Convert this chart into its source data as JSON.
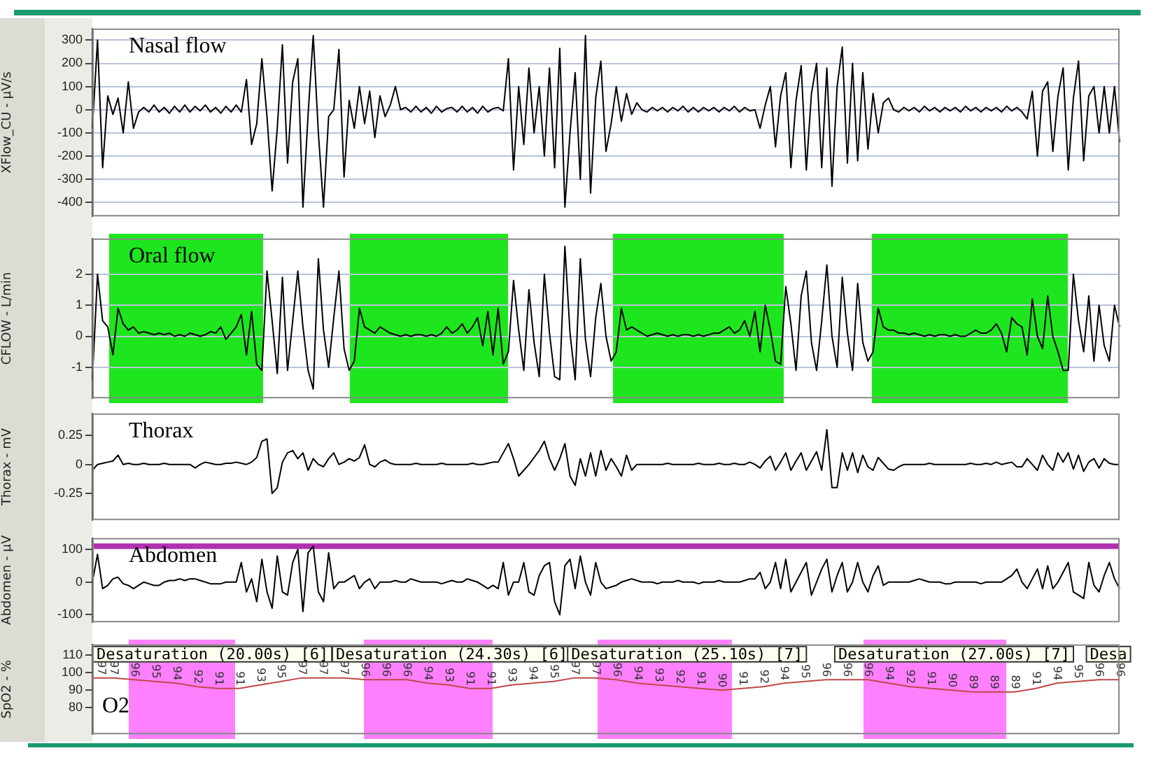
{
  "chart_data": [
    {
      "type": "line",
      "title": "Nasal flow",
      "ylabel": "XFlow_CU - µV/s",
      "ylim": [
        -460,
        350
      ],
      "yticks": [
        -400,
        -300,
        -200,
        -100,
        0,
        100,
        200,
        300
      ],
      "grid": "y",
      "tick_labels": "y",
      "categories": [
        null,
        null,
        null,
        null,
        null,
        null,
        null,
        null,
        null,
        null,
        null,
        null,
        null,
        null,
        null,
        null,
        null,
        null,
        null,
        null,
        null,
        null,
        null,
        null,
        null,
        null,
        null,
        null,
        null,
        null,
        null,
        null,
        null,
        null,
        null,
        null,
        null,
        null,
        null,
        null,
        null,
        null,
        null,
        null,
        null,
        null,
        null,
        null,
        null,
        null,
        null,
        null,
        null,
        null,
        null,
        null,
        null,
        null,
        null,
        null,
        null,
        null,
        null,
        null,
        null,
        null,
        null,
        null,
        null,
        null,
        null,
        null,
        null,
        null,
        null,
        null,
        null,
        null,
        null,
        null,
        null,
        null,
        null,
        null,
        null,
        null,
        null,
        null,
        null,
        null,
        null,
        null,
        null,
        null,
        null,
        null,
        null,
        null,
        null,
        null,
        null,
        null,
        null,
        null,
        null,
        null,
        null,
        null,
        null,
        null,
        null,
        null,
        null,
        null,
        null,
        null,
        null,
        null,
        null,
        null,
        null,
        null,
        null,
        null,
        null,
        null,
        null,
        null,
        null,
        null,
        null,
        null,
        null,
        null,
        null,
        null,
        null,
        null,
        null,
        null,
        null,
        null,
        null,
        null,
        null,
        null,
        null,
        null,
        null,
        null,
        null,
        null,
        null,
        null,
        null,
        null,
        null,
        null,
        null,
        null,
        null,
        null,
        null,
        null,
        null,
        null,
        null,
        null,
        null,
        null,
        null,
        null,
        null,
        null,
        null,
        null,
        null,
        null,
        null,
        null,
        null,
        null,
        null,
        null,
        null,
        null,
        null,
        null,
        null,
        null,
        null,
        null,
        null,
        null,
        null,
        null,
        null,
        null,
        null,
        null,
        null
      ],
      "series": [
        {
          "color": "#000000",
          "values": [
            -80,
            300,
            -250,
            60,
            -20,
            50,
            -100,
            120,
            -80,
            -10,
            10,
            -10,
            20,
            -10,
            10,
            -15,
            15,
            -10,
            20,
            -10,
            15,
            -5,
            20,
            -10,
            10,
            -15,
            15,
            -10,
            20,
            -10,
            130,
            -150,
            -60,
            220,
            -30,
            -350,
            -80,
            280,
            -230,
            120,
            220,
            -420,
            -20,
            320,
            -100,
            -420,
            -30,
            0,
            260,
            -290,
            40,
            -80,
            100,
            -60,
            80,
            -120,
            60,
            -30,
            20,
            100,
            0,
            10,
            -10,
            15,
            -10,
            10,
            -15,
            15,
            -10,
            5,
            10,
            -10,
            15,
            -10,
            10,
            -15,
            15,
            -10,
            5,
            10,
            -5,
            220,
            -260,
            100,
            -150,
            180,
            -100,
            100,
            -200,
            180,
            -250,
            265,
            -420,
            -100,
            160,
            -300,
            320,
            -360,
            50,
            210,
            -180,
            -60,
            100,
            -50,
            70,
            -20,
            30,
            0,
            -10,
            10,
            -5,
            10,
            -10,
            10,
            -5,
            15,
            -10,
            10,
            -10,
            10,
            -5,
            10,
            -10,
            10,
            -5,
            15,
            -10,
            10,
            -5,
            0,
            -80,
            20,
            100,
            -160,
            60,
            160,
            -250,
            40,
            190,
            -260,
            70,
            200,
            -250,
            180,
            -330,
            100,
            270,
            -230,
            200,
            -220,
            160,
            -170,
            70,
            -100,
            30,
            50,
            0,
            -10,
            10,
            -5,
            10,
            -10,
            15,
            -5,
            10,
            -10,
            10,
            -5,
            10,
            -10,
            15,
            -5,
            10,
            -10,
            10,
            -5,
            10,
            -10,
            15,
            -5,
            10,
            -10,
            -40,
            80,
            -200,
            80,
            120,
            -180,
            60,
            180,
            -260,
            50,
            210,
            -220,
            60,
            100,
            -100,
            100,
            -100,
            100,
            -140
          ]
        }
      ]
    },
    {
      "type": "line",
      "title": "Oral flow",
      "ylabel": "CFLOW - L/min",
      "ylim": [
        -2,
        3.15
      ],
      "yticks": [
        -1,
        0,
        1,
        2
      ],
      "grid": "y",
      "tick_labels": "y",
      "categories": [
        null,
        null,
        null,
        null,
        null,
        null,
        null,
        null,
        null,
        null,
        null,
        null,
        null,
        null,
        null,
        null,
        null,
        null,
        null,
        null,
        null,
        null,
        null,
        null,
        null,
        null,
        null,
        null,
        null,
        null,
        null,
        null,
        null,
        null,
        null,
        null,
        null,
        null,
        null,
        null,
        null,
        null,
        null,
        null,
        null,
        null,
        null,
        null,
        null,
        null,
        null,
        null,
        null,
        null,
        null,
        null,
        null,
        null,
        null,
        null,
        null,
        null,
        null,
        null,
        null,
        null,
        null,
        null,
        null,
        null,
        null,
        null,
        null,
        null,
        null,
        null,
        null,
        null,
        null,
        null,
        null,
        null,
        null,
        null,
        null,
        null,
        null,
        null,
        null,
        null,
        null,
        null,
        null,
        null,
        null,
        null,
        null,
        null,
        null,
        null,
        null,
        null,
        null,
        null,
        null,
        null,
        null,
        null,
        null,
        null,
        null,
        null,
        null,
        null,
        null,
        null,
        null,
        null,
        null,
        null,
        null,
        null,
        null,
        null,
        null,
        null,
        null,
        null,
        null,
        null,
        null,
        null,
        null,
        null,
        null,
        null,
        null,
        null,
        null,
        null,
        null,
        null,
        null,
        null,
        null,
        null,
        null,
        null,
        null,
        null,
        null,
        null,
        null,
        null,
        null,
        null,
        null,
        null,
        null,
        null,
        null,
        null,
        null,
        null,
        null,
        null,
        null,
        null,
        null,
        null,
        null,
        null,
        null,
        null,
        null,
        null,
        null,
        null,
        null,
        null,
        null,
        null,
        null,
        null,
        null,
        null,
        null,
        null,
        null,
        null,
        null,
        null,
        null,
        null,
        null,
        null,
        null,
        null,
        null,
        null,
        null
      ],
      "series": [
        {
          "color": "#000000",
          "values": [
            -1.4,
            2.0,
            0.5,
            0.3,
            -0.6,
            0.9,
            0.4,
            0.2,
            0.3,
            0.1,
            0.15,
            0.1,
            0.05,
            0.1,
            0.05,
            0.1,
            0,
            0.05,
            0,
            0.1,
            0.05,
            0,
            0.05,
            0.15,
            0.1,
            0.3,
            -0.1,
            0.1,
            0.3,
            0.7,
            -0.6,
            0.8,
            -0.9,
            -1.1,
            2.1,
            0.5,
            -1.2,
            1.9,
            -1.1,
            0.5,
            2.1,
            0.3,
            -1.1,
            -1.7,
            2.5,
            0.2,
            -1.0,
            0.6,
            2.1,
            -0.4,
            -1.1,
            -0.8,
            0.9,
            0.3,
            0.2,
            0.1,
            0.3,
            0.2,
            0.1,
            0.05,
            0,
            0.05,
            0,
            0.05,
            0.05,
            0,
            0.05,
            0,
            0.1,
            0.3,
            0.1,
            0.2,
            0.4,
            0.1,
            0.3,
            0.6,
            -0.3,
            0.8,
            -0.6,
            0.9,
            -0.9,
            -0.5,
            1.8,
            0.2,
            -1.1,
            1.5,
            -0.2,
            -1.3,
            2.0,
            0.1,
            -1.3,
            -1.4,
            2.9,
            0.1,
            -1.4,
            2.5,
            -0.1,
            -1.3,
            0.6,
            1.7,
            0,
            -0.8,
            -0.5,
            0.9,
            0.2,
            0.3,
            0.2,
            0.1,
            0,
            0.05,
            0.1,
            0.05,
            0,
            0.05,
            0,
            0.05,
            0.05,
            0,
            0.05,
            0,
            0.05,
            0.1,
            0.1,
            0.2,
            0.3,
            0.1,
            0.2,
            0.5,
            0,
            0.8,
            -0.5,
            1.0,
            0.2,
            -0.8,
            -0.9,
            1.6,
            0.4,
            -1.1,
            1.3,
            2.1,
            -0.2,
            -1.1,
            0.5,
            2.3,
            0,
            -1.0,
            1.9,
            0.1,
            -1.1,
            1.7,
            -0.2,
            -0.8,
            -0.5,
            0.9,
            0.3,
            0.2,
            0.2,
            0.1,
            0.1,
            0.05,
            0.1,
            0.05,
            0,
            0.05,
            0,
            0.05,
            0.05,
            0,
            0.05,
            0,
            0,
            0.1,
            0.2,
            0.1,
            0.1,
            0.2,
            0.4,
            0.1,
            -0.5,
            0.6,
            0.4,
            0.3,
            -0.6,
            1.2,
            0,
            -0.4,
            1.3,
            0,
            -0.5,
            -1.1,
            -1.1,
            2.0,
            0.5,
            -0.5,
            1.3,
            -0.8,
            1.0,
            -0.3,
            -0.8,
            1.0,
            0.3
          ]
        }
      ]
    },
    {
      "type": "line",
      "title": "Thorax",
      "ylabel": "Thorax - mV",
      "ylim": [
        -0.48,
        0.44
      ],
      "yticks": [
        -0.25,
        0,
        0.25
      ],
      "tick_labels": "y",
      "categories": [
        null,
        null,
        null,
        null,
        null,
        null,
        null,
        null,
        null,
        null,
        null,
        null,
        null,
        null,
        null,
        null,
        null,
        null,
        null,
        null,
        null,
        null,
        null,
        null,
        null,
        null,
        null,
        null,
        null,
        null,
        null,
        null,
        null,
        null,
        null,
        null,
        null,
        null,
        null,
        null,
        null,
        null,
        null,
        null,
        null,
        null,
        null,
        null,
        null,
        null,
        null,
        null,
        null,
        null,
        null,
        null,
        null,
        null,
        null,
        null,
        null,
        null,
        null,
        null,
        null,
        null,
        null,
        null,
        null,
        null,
        null,
        null,
        null,
        null,
        null,
        null,
        null,
        null,
        null,
        null,
        null,
        null,
        null,
        null,
        null,
        null,
        null,
        null,
        null,
        null,
        null,
        null,
        null,
        null,
        null,
        null,
        null,
        null,
        null,
        null,
        null,
        null,
        null,
        null,
        null,
        null,
        null,
        null,
        null,
        null,
        null,
        null,
        null,
        null,
        null,
        null,
        null,
        null,
        null,
        null,
        null,
        null,
        null,
        null,
        null,
        null,
        null,
        null,
        null,
        null,
        null,
        null,
        null,
        null,
        null,
        null,
        null,
        null,
        null,
        null,
        null,
        null,
        null,
        null,
        null,
        null,
        null,
        null,
        null,
        null,
        null,
        null,
        null,
        null,
        null,
        null,
        null,
        null,
        null,
        null,
        null,
        null,
        null,
        null,
        null,
        null,
        null,
        null,
        null,
        null,
        null,
        null,
        null,
        null,
        null,
        null,
        null,
        null,
        null,
        null,
        null,
        null,
        null,
        null,
        null,
        null,
        null,
        null,
        null,
        null,
        null,
        null,
        null,
        null,
        null,
        null,
        null,
        null,
        null,
        null,
        null
      ],
      "series": [
        {
          "color": "#000000",
          "values": [
            -0.05,
            0,
            0.01,
            0.02,
            0.03,
            0.08,
            0,
            0.01,
            0,
            0,
            0.01,
            0,
            0,
            0,
            0.01,
            0,
            0,
            0,
            0,
            0,
            -0.03,
            0,
            0.02,
            0.01,
            0,
            0,
            0.01,
            0.01,
            0.02,
            0.01,
            0,
            0.02,
            0.06,
            0.2,
            0.22,
            -0.25,
            -0.2,
            0.02,
            0.1,
            0.12,
            0.05,
            0.1,
            -0.05,
            0.05,
            0,
            -0.02,
            0.05,
            0.1,
            0,
            0.02,
            0.05,
            0.03,
            0.06,
            0.17,
            0,
            -0.02,
            0.02,
            0.04,
            0.01,
            0,
            0,
            0,
            0,
            0.01,
            0,
            0,
            0,
            0,
            0.01,
            0,
            0,
            0,
            0,
            0,
            0.01,
            0,
            0,
            0.01,
            0.02,
            0.02,
            0.1,
            0.18,
            0.05,
            -0.1,
            -0.05,
            0,
            0.06,
            0.12,
            0.2,
            0.05,
            -0.05,
            0.05,
            0.18,
            -0.1,
            -0.18,
            0.05,
            -0.1,
            0.1,
            -0.1,
            0.12,
            -0.05,
            0.05,
            -0.02,
            -0.1,
            0.08,
            -0.05,
            0,
            0,
            0,
            0,
            0,
            0,
            0.01,
            0,
            0,
            0,
            0,
            0,
            0.01,
            0,
            0,
            0,
            0.01,
            0,
            0,
            0.01,
            0,
            0,
            0.02,
            0,
            -0.03,
            0.03,
            0.07,
            -0.05,
            0.02,
            0.1,
            -0.05,
            0.03,
            0.1,
            -0.05,
            0.03,
            0.11,
            -0.05,
            0.3,
            -0.2,
            -0.2,
            0.1,
            -0.05,
            0.1,
            -0.07,
            0.08,
            -0.02,
            -0.05,
            0.06,
            0.01,
            -0.04,
            -0.05,
            -0.02,
            0,
            0,
            0,
            0,
            0,
            0.01,
            0,
            0,
            0,
            0,
            0,
            0,
            0,
            0.01,
            0,
            0,
            0.01,
            0,
            0.02,
            0,
            0.01,
            0.02,
            -0.02,
            -0.02,
            0.05,
            0,
            -0.05,
            0.08,
            0,
            -0.05,
            0.1,
            0.02,
            0.1,
            -0.04,
            0.08,
            -0.06,
            0.02,
            0.05,
            -0.03,
            0.05,
            0.01,
            0,
            0
          ]
        }
      ]
    },
    {
      "type": "line",
      "title": "Abdomen",
      "ylabel": "Abdomen - µV",
      "ylim": [
        -123,
        135
      ],
      "yticks": [
        -100,
        0,
        100
      ],
      "tick_labels": "y",
      "categories": [
        null,
        null,
        null,
        null,
        null,
        null,
        null,
        null,
        null,
        null,
        null,
        null,
        null,
        null,
        null,
        null,
        null,
        null,
        null,
        null,
        null,
        null,
        null,
        null,
        null,
        null,
        null,
        null,
        null,
        null,
        null,
        null,
        null,
        null,
        null,
        null,
        null,
        null,
        null,
        null,
        null,
        null,
        null,
        null,
        null,
        null,
        null,
        null,
        null,
        null,
        null,
        null,
        null,
        null,
        null,
        null,
        null,
        null,
        null,
        null,
        null,
        null,
        null,
        null,
        null,
        null,
        null,
        null,
        null,
        null,
        null,
        null,
        null,
        null,
        null,
        null,
        null,
        null,
        null,
        null,
        null,
        null,
        null,
        null,
        null,
        null,
        null,
        null,
        null,
        null,
        null,
        null,
        null,
        null,
        null,
        null,
        null,
        null,
        null,
        null,
        null,
        null,
        null,
        null,
        null,
        null,
        null,
        null,
        null,
        null,
        null,
        null,
        null,
        null,
        null,
        null,
        null,
        null,
        null,
        null,
        null,
        null,
        null,
        null,
        null,
        null,
        null,
        null,
        null,
        null,
        null,
        null,
        null,
        null,
        null,
        null,
        null,
        null,
        null,
        null,
        null,
        null,
        null,
        null,
        null,
        null,
        null,
        null,
        null,
        null,
        null,
        null,
        null,
        null,
        null,
        null,
        null,
        null,
        null,
        null,
        null,
        null,
        null,
        null,
        null,
        null,
        null,
        null,
        null,
        null,
        null,
        null,
        null,
        null,
        null,
        null,
        null,
        null,
        null,
        null,
        null,
        null,
        null,
        null,
        null,
        null,
        null,
        null,
        null,
        null,
        null,
        null,
        null,
        null,
        null,
        null,
        null,
        null,
        null,
        null,
        null
      ],
      "ref_lines": [
        {
          "axis": "y",
          "value": 110,
          "color": "#b030b0"
        }
      ],
      "series": [
        {
          "color": "#000000",
          "values": [
            0,
            85,
            -20,
            -10,
            10,
            15,
            -5,
            -10,
            -20,
            -10,
            0,
            -5,
            -10,
            -10,
            0,
            5,
            5,
            10,
            5,
            10,
            10,
            5,
            0,
            -5,
            -5,
            -5,
            0,
            0,
            0,
            60,
            -30,
            10,
            -60,
            70,
            -30,
            -80,
            80,
            -30,
            -40,
            60,
            100,
            -90,
            90,
            110,
            -30,
            -60,
            90,
            -20,
            0,
            0,
            10,
            20,
            -20,
            0,
            10,
            -20,
            0,
            0,
            0,
            5,
            0,
            0,
            10,
            5,
            0,
            0,
            0,
            0,
            -5,
            0,
            5,
            0,
            0,
            10,
            5,
            0,
            -10,
            -20,
            -10,
            -20,
            60,
            -40,
            0,
            0,
            60,
            -30,
            -40,
            20,
            50,
            60,
            -60,
            -100,
            50,
            70,
            -20,
            80,
            0,
            -40,
            60,
            0,
            -20,
            -15,
            -10,
            0,
            5,
            10,
            5,
            0,
            0,
            0,
            -5,
            0,
            0,
            0,
            5,
            0,
            0,
            0,
            -5,
            0,
            0,
            0,
            5,
            0,
            0,
            0,
            0,
            5,
            10,
            10,
            30,
            -20,
            0,
            60,
            -20,
            70,
            -30,
            0,
            30,
            60,
            -40,
            0,
            40,
            70,
            -30,
            20,
            60,
            -30,
            0,
            60,
            0,
            -30,
            20,
            50,
            -10,
            0,
            0,
            0,
            0,
            0,
            5,
            10,
            5,
            0,
            0,
            0,
            -5,
            -5,
            0,
            0,
            0,
            0,
            0,
            -5,
            0,
            0,
            0,
            0,
            10,
            20,
            40,
            0,
            -20,
            10,
            40,
            -20,
            50,
            -20,
            0,
            30,
            60,
            -30,
            -40,
            -50,
            60,
            -10,
            -30,
            20,
            60,
            10,
            -20
          ]
        }
      ]
    },
    {
      "type": "line",
      "title": "O2",
      "ylabel": "SpO2 - %",
      "ylim": [
        65,
        116
      ],
      "yticks": [
        80,
        90,
        100,
        110
      ],
      "tick_labels": "y",
      "data_labels": true,
      "categories": [
        null,
        null,
        null,
        null,
        null,
        null,
        null,
        null,
        null,
        null,
        null,
        null,
        null,
        null,
        null,
        null,
        null,
        null,
        null,
        null,
        null,
        null,
        null,
        null,
        null,
        null,
        null,
        null,
        null,
        null,
        null,
        null,
        null,
        null,
        null,
        null,
        null,
        null,
        null,
        null,
        null,
        null,
        null,
        null,
        null,
        null,
        null,
        null,
        null,
        null
      ],
      "annotations": [
        "Desaturation (20.00s) [6]",
        "Desaturation (24.30s) [6]",
        "Desaturation (25.10s) [7]",
        "Desaturation (27.00s) [7]",
        "Desa"
      ],
      "series": [
        {
          "color": "#c04848",
          "values": [
            97,
            97,
            96,
            95,
            94,
            92,
            91,
            91,
            93,
            95,
            97,
            97,
            97,
            96,
            96,
            96,
            94,
            93,
            91,
            91,
            93,
            94,
            95,
            97,
            97,
            96,
            94,
            93,
            92,
            91,
            90,
            91,
            92,
            94,
            95,
            96,
            96,
            96,
            94,
            92,
            91,
            90,
            89,
            89,
            89,
            91,
            94,
            95,
            96,
            96
          ]
        }
      ]
    }
  ]
}
